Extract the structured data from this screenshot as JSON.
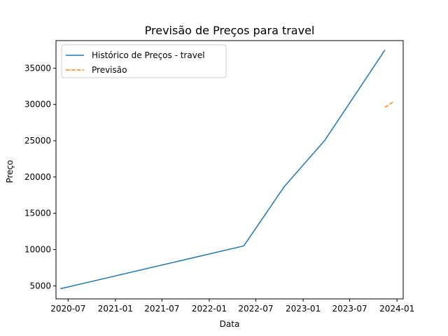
{
  "chart_data": {
    "type": "line",
    "title": "Previsão de Preços para travel",
    "xlabel": "Data",
    "ylabel": "Preço",
    "xlim": [
      "2020-05-15",
      "2024-01-25"
    ],
    "ylim": [
      3200,
      38800
    ],
    "x_ticks": [
      "2020-07",
      "2021-01",
      "2021-07",
      "2022-01",
      "2022-07",
      "2023-01",
      "2023-07",
      "2024-01"
    ],
    "y_ticks": [
      5000,
      10000,
      15000,
      20000,
      25000,
      30000,
      35000
    ],
    "grid": false,
    "legend_position": "top-left",
    "series": [
      {
        "name": "Histórico de Preços - travel",
        "color": "#1f77b4",
        "style": "solid",
        "points": [
          {
            "x": "2020-06-01",
            "y": 4600
          },
          {
            "x": "2022-05-15",
            "y": 10500
          },
          {
            "x": "2022-10-20",
            "y": 18700
          },
          {
            "x": "2023-03-25",
            "y": 25000
          },
          {
            "x": "2023-11-15",
            "y": 37500
          }
        ]
      },
      {
        "name": "Previsão",
        "color": "#ff7f0e",
        "style": "dashed",
        "points": [
          {
            "x": "2023-11-15",
            "y": 29600
          },
          {
            "x": "2023-12-15",
            "y": 30300
          }
        ]
      }
    ]
  }
}
